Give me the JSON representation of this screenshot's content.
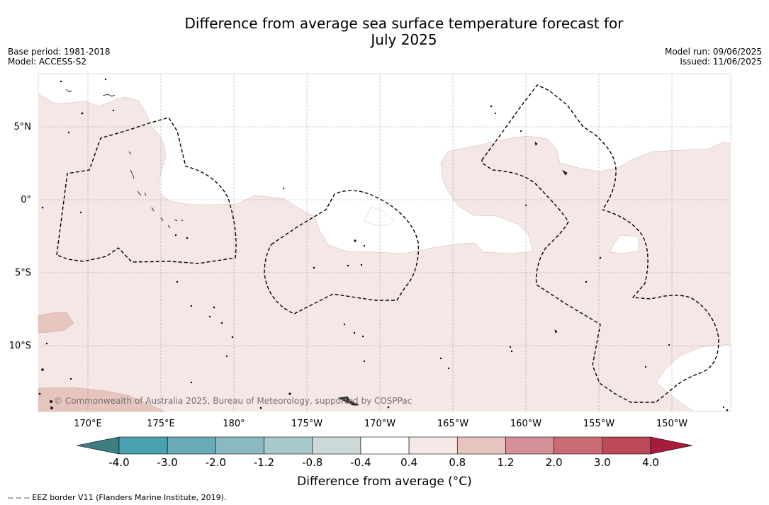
{
  "title": {
    "line1": "Difference from average sea surface temperature forecast for",
    "line2": "July 2025"
  },
  "meta": {
    "base_period": "Base period: 1981-2018",
    "model": "Model: ACCESS-S2",
    "model_run": "Model run: 09/06/2025",
    "issued": "Issued: 11/06/2025"
  },
  "map": {
    "lat_labels": [
      "5°N",
      "0°",
      "5°S",
      "10°S"
    ],
    "lon_labels": [
      "170°E",
      "175°E",
      "180°",
      "175°W",
      "170°W",
      "165°W",
      "160°W",
      "155°W",
      "150°W"
    ],
    "copyright": "© Commonwealth of Australia 2025, Bureau of Meteorology, supported by COSPPac",
    "colors": {
      "anomaly_0_4_to_0_8": "#f5e7e5",
      "anomaly_0_8_to_1_2": "#e6c5bf",
      "neutral": "#ffffff",
      "eez_border": "#000000",
      "grid": "#555555"
    }
  },
  "colorbar": {
    "ticks": [
      "-4.0",
      "-3.0",
      "-2.0",
      "-1.2",
      "-0.8",
      "-0.4",
      "0.4",
      "0.8",
      "1.2",
      "2.0",
      "3.0",
      "4.0"
    ],
    "colors": [
      "#3e7e83",
      "#4aa1b0",
      "#6aabb8",
      "#8ab9c3",
      "#a9c8cc",
      "#cdd8d8",
      "#ffffff",
      "#f6e8e6",
      "#e6c5bf",
      "#d5919a",
      "#c96c76",
      "#bd4857",
      "#a81c3b"
    ],
    "label": "Difference from average (°C)"
  },
  "eez_note": "--  --  -- EEZ border V11 (Flanders Marine Institute, 2019)."
}
